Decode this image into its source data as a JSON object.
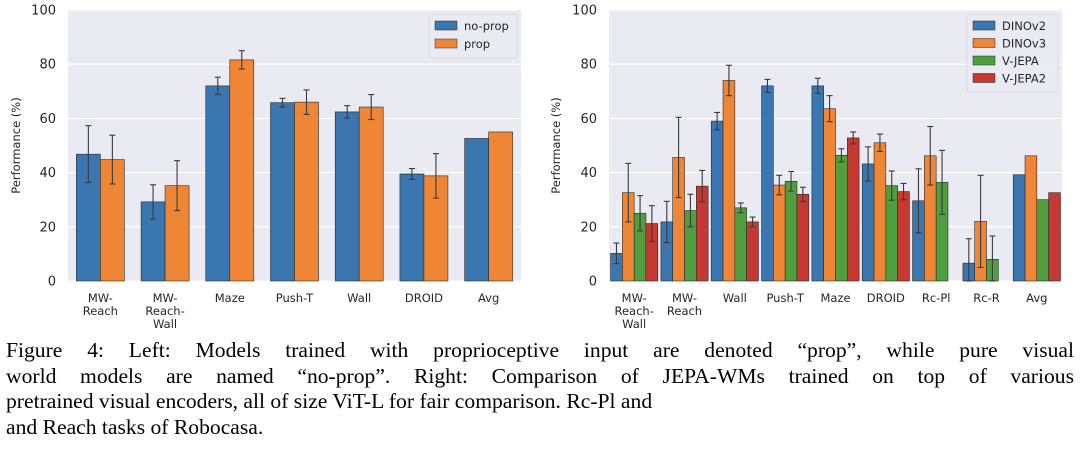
{
  "chart_data": [
    {
      "type": "bar",
      "ylabel": "Performance (%)",
      "ylim": [
        0,
        100
      ],
      "yticks": [
        "0",
        "20",
        "40",
        "60",
        "80",
        "100"
      ],
      "grid": true,
      "legend_position": "top-right",
      "categories": [
        [
          "MW-",
          "Reach"
        ],
        [
          "MW-",
          "Reach-",
          "Wall"
        ],
        [
          "Maze"
        ],
        [
          "Push-T"
        ],
        [
          "Wall"
        ],
        [
          "DROID"
        ],
        [
          "Avg"
        ]
      ],
      "series": [
        {
          "name": "no-prop",
          "color": "#3a76af",
          "values": [
            46.8,
            29.2,
            72.0,
            65.8,
            62.4,
            39.5,
            52.6
          ],
          "errors": [
            10.5,
            6.3,
            3.2,
            1.6,
            2.3,
            2.0,
            null
          ]
        },
        {
          "name": "prop",
          "color": "#ef8636",
          "values": [
            44.8,
            35.2,
            81.6,
            66.0,
            64.2,
            38.8,
            55.0
          ],
          "errors": [
            9.0,
            9.2,
            3.4,
            4.5,
            4.6,
            8.2,
            null
          ]
        }
      ]
    },
    {
      "type": "bar",
      "ylabel": "Performance (%)",
      "ylim": [
        0,
        100
      ],
      "yticks": [
        "0",
        "20",
        "40",
        "60",
        "80",
        "100"
      ],
      "grid": true,
      "legend_position": "top-right",
      "categories": [
        [
          "MW-",
          "Reach-",
          "Wall"
        ],
        [
          "MW-",
          "Reach"
        ],
        [
          "Wall"
        ],
        [
          "Push-T"
        ],
        [
          "Maze"
        ],
        [
          "DROID"
        ],
        [
          "Rc-Pl"
        ],
        [
          "Rc-R"
        ],
        [
          "Avg"
        ]
      ],
      "series": [
        {
          "name": "DINOv2",
          "color": "#3a76af",
          "values": [
            10.2,
            21.8,
            59.0,
            72.0,
            72.0,
            43.2,
            29.6,
            6.6,
            39.2
          ],
          "errors": [
            3.8,
            7.6,
            3.2,
            2.4,
            2.8,
            6.3,
            11.8,
            9.0,
            null
          ]
        },
        {
          "name": "DINOv3",
          "color": "#ef8636",
          "values": [
            32.6,
            45.6,
            74.0,
            35.4,
            63.6,
            51.0,
            46.2,
            22.0,
            46.2
          ],
          "errors": [
            10.8,
            14.8,
            5.6,
            3.6,
            4.8,
            3.2,
            10.8,
            17.0,
            null
          ]
        },
        {
          "name": "V-JEPA",
          "color": "#519e3e",
          "values": [
            25.0,
            26.0,
            27.0,
            36.8,
            46.4,
            35.2,
            36.4,
            8.0,
            30.0
          ],
          "errors": [
            6.5,
            6.0,
            1.8,
            3.6,
            2.4,
            5.4,
            11.8,
            8.6,
            null
          ]
        },
        {
          "name": "V-JEPA2",
          "color": "#c53932",
          "values": [
            21.2,
            35.0,
            21.8,
            32.0,
            52.8,
            33.0,
            0,
            0,
            32.6
          ],
          "errors": [
            6.6,
            5.8,
            1.8,
            2.6,
            2.2,
            3.0,
            null,
            null,
            null
          ]
        }
      ]
    }
  ],
  "caption": {
    "lines": [
      "Figure 4: Left: Models trained with proprioceptive input are denoted “prop”, while pure visual",
      "world models are named “no-prop”. Right: Comparison of JEPA-WMs trained on top of various",
      "pretrained visual encoders, all of size ViT-L for fair comparison. Rc-Pl and",
      "and Reach tasks of Robocasa."
    ]
  }
}
